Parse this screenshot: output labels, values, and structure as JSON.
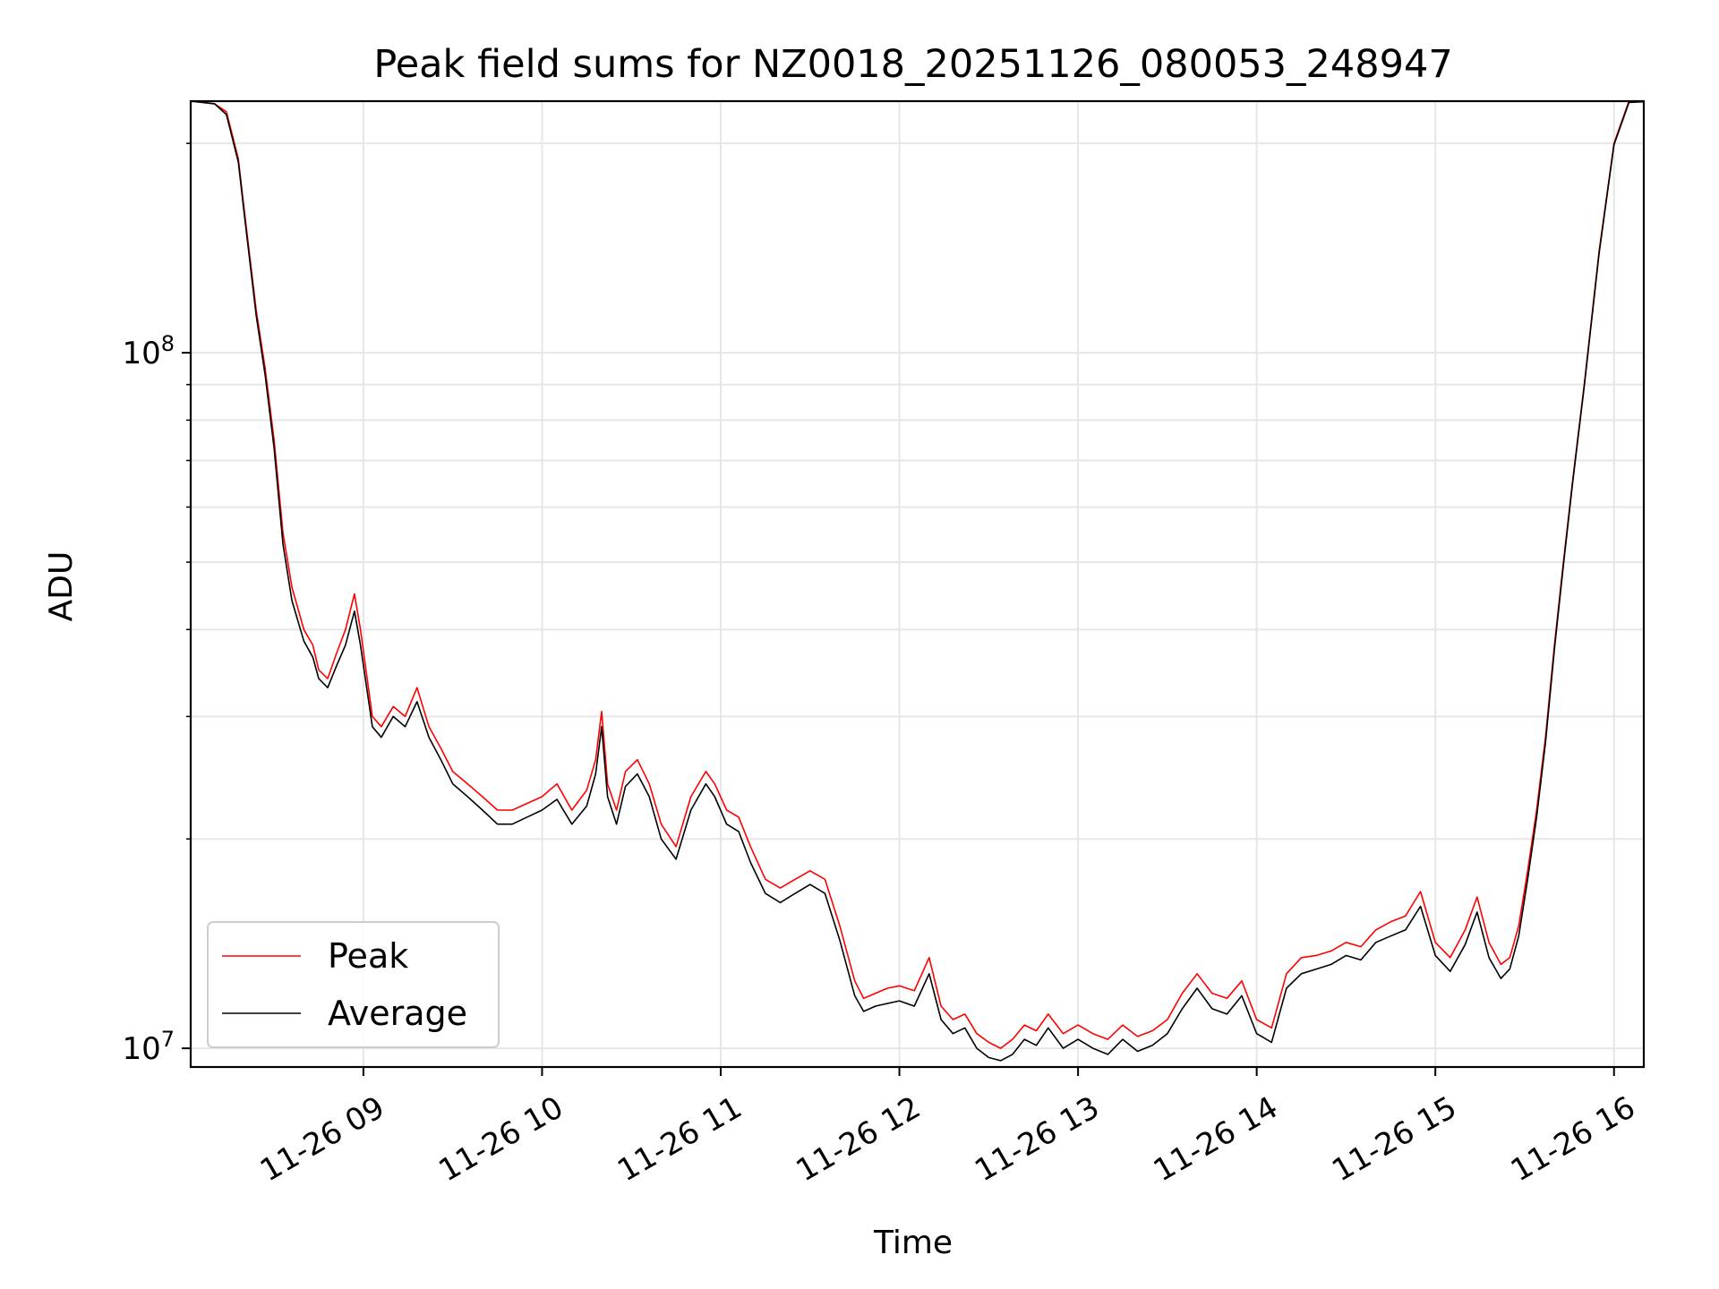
{
  "chart_data": {
    "type": "line",
    "title": "Peak field sums for NZ0018_20251126_080053_248947",
    "xlabel": "Time",
    "ylabel": "ADU",
    "yscale": "log",
    "ylim": [
      9400000,
      230000000
    ],
    "xlim": [
      "2025-11-26 08:02",
      "2025-11-26 16:10"
    ],
    "grid": true,
    "legend": "lower-left",
    "x_ticks": [
      {
        "value": "2025-11-26 09:00",
        "label": "11-26 09"
      },
      {
        "value": "2025-11-26 10:00",
        "label": "11-26 10"
      },
      {
        "value": "2025-11-26 11:00",
        "label": "11-26 11"
      },
      {
        "value": "2025-11-26 12:00",
        "label": "11-26 12"
      },
      {
        "value": "2025-11-26 13:00",
        "label": "11-26 13"
      },
      {
        "value": "2025-11-26 14:00",
        "label": "11-26 14"
      },
      {
        "value": "2025-11-26 15:00",
        "label": "11-26 15"
      },
      {
        "value": "2025-11-26 16:00",
        "label": "11-26 16"
      }
    ],
    "y_ticks": [
      {
        "value": 10000000,
        "base": "10",
        "exp": "7"
      },
      {
        "value": 100000000,
        "base": "10",
        "exp": "8"
      }
    ],
    "x": [
      "2025-11-26 08:02",
      "2025-11-26 08:10",
      "2025-11-26 08:14",
      "2025-11-26 08:18",
      "2025-11-26 08:20",
      "2025-11-26 08:24",
      "2025-11-26 08:27",
      "2025-11-26 08:30",
      "2025-11-26 08:33",
      "2025-11-26 08:36",
      "2025-11-26 08:40",
      "2025-11-26 08:43",
      "2025-11-26 08:45",
      "2025-11-26 08:48",
      "2025-11-26 08:51",
      "2025-11-26 08:54",
      "2025-11-26 08:57",
      "2025-11-26 08:59",
      "2025-11-26 09:03",
      "2025-11-26 09:06",
      "2025-11-26 09:10",
      "2025-11-26 09:14",
      "2025-11-26 09:18",
      "2025-11-26 09:22",
      "2025-11-26 09:26",
      "2025-11-26 09:30",
      "2025-11-26 09:35",
      "2025-11-26 09:40",
      "2025-11-26 09:45",
      "2025-11-26 09:50",
      "2025-11-26 09:55",
      "2025-11-26 10:00",
      "2025-11-26 10:05",
      "2025-11-26 10:10",
      "2025-11-26 10:15",
      "2025-11-26 10:18",
      "2025-11-26 10:20",
      "2025-11-26 10:22",
      "2025-11-26 10:25",
      "2025-11-26 10:28",
      "2025-11-26 10:32",
      "2025-11-26 10:36",
      "2025-11-26 10:40",
      "2025-11-26 10:45",
      "2025-11-26 10:50",
      "2025-11-26 10:55",
      "2025-11-26 10:58",
      "2025-11-26 11:02",
      "2025-11-26 11:06",
      "2025-11-26 11:10",
      "2025-11-26 11:15",
      "2025-11-26 11:20",
      "2025-11-26 11:25",
      "2025-11-26 11:30",
      "2025-11-26 11:35",
      "2025-11-26 11:40",
      "2025-11-26 11:45",
      "2025-11-26 11:48",
      "2025-11-26 11:52",
      "2025-11-26 11:56",
      "2025-11-26 12:00",
      "2025-11-26 12:05",
      "2025-11-26 12:10",
      "2025-11-26 12:14",
      "2025-11-26 12:18",
      "2025-11-26 12:22",
      "2025-11-26 12:26",
      "2025-11-26 12:30",
      "2025-11-26 12:34",
      "2025-11-26 12:38",
      "2025-11-26 12:42",
      "2025-11-26 12:46",
      "2025-11-26 12:50",
      "2025-11-26 12:55",
      "2025-11-26 13:00",
      "2025-11-26 13:05",
      "2025-11-26 13:10",
      "2025-11-26 13:15",
      "2025-11-26 13:20",
      "2025-11-26 13:25",
      "2025-11-26 13:30",
      "2025-11-26 13:35",
      "2025-11-26 13:40",
      "2025-11-26 13:45",
      "2025-11-26 13:50",
      "2025-11-26 13:55",
      "2025-11-26 14:00",
      "2025-11-26 14:05",
      "2025-11-26 14:10",
      "2025-11-26 14:15",
      "2025-11-26 14:20",
      "2025-11-26 14:25",
      "2025-11-26 14:30",
      "2025-11-26 14:35",
      "2025-11-26 14:40",
      "2025-11-26 14:45",
      "2025-11-26 14:50",
      "2025-11-26 14:55",
      "2025-11-26 15:00",
      "2025-11-26 15:05",
      "2025-11-26 15:10",
      "2025-11-26 15:14",
      "2025-11-26 15:18",
      "2025-11-26 15:22",
      "2025-11-26 15:25",
      "2025-11-26 15:28",
      "2025-11-26 15:31",
      "2025-11-26 15:34",
      "2025-11-26 15:37",
      "2025-11-26 15:40",
      "2025-11-26 15:43",
      "2025-11-26 15:46",
      "2025-11-26 15:50",
      "2025-11-26 15:55",
      "2025-11-26 16:00",
      "2025-11-26 16:05",
      "2025-11-26 16:10"
    ],
    "series": [
      {
        "name": "Peak",
        "color": "#ff0000",
        "values": [
          230000000,
          228000000,
          222000000,
          190000000,
          160000000,
          115000000,
          95000000,
          75000000,
          55000000,
          46000000,
          40000000,
          38000000,
          35000000,
          34000000,
          37000000,
          40000000,
          45000000,
          40000000,
          30000000,
          29000000,
          31000000,
          30000000,
          33000000,
          29000000,
          27000000,
          25000000,
          24000000,
          23000000,
          22000000,
          22000000,
          22500000,
          23000000,
          24000000,
          22000000,
          23500000,
          26000000,
          30500000,
          24000000,
          22000000,
          25000000,
          26000000,
          24000000,
          21000000,
          19500000,
          23000000,
          25000000,
          24000000,
          22000000,
          21500000,
          19500000,
          17500000,
          17000000,
          17500000,
          18000000,
          17500000,
          15000000,
          12500000,
          11800000,
          12000000,
          12200000,
          12300000,
          12100000,
          13500000,
          11500000,
          11000000,
          11200000,
          10500000,
          10200000,
          10000000,
          10300000,
          10800000,
          10600000,
          11200000,
          10500000,
          10800000,
          10500000,
          10300000,
          10800000,
          10400000,
          10600000,
          11000000,
          12000000,
          12800000,
          12000000,
          11800000,
          12500000,
          11000000,
          10700000,
          12800000,
          13500000,
          13600000,
          13800000,
          14200000,
          14000000,
          14800000,
          15200000,
          15500000,
          16800000,
          14200000,
          13500000,
          14800000,
          16500000,
          14200000,
          13200000,
          13500000,
          15000000,
          18000000,
          22000000,
          28000000,
          38000000,
          50000000,
          65000000,
          90000000,
          140000000,
          200000000,
          230000000,
          230000000
        ]
      },
      {
        "name": "Average",
        "color": "#000000",
        "values": [
          230000000,
          228000000,
          220000000,
          188000000,
          158000000,
          113000000,
          93000000,
          73000000,
          53000000,
          44000000,
          38500000,
          36500000,
          34000000,
          33000000,
          35500000,
          38000000,
          42500000,
          38000000,
          29000000,
          28000000,
          30000000,
          29000000,
          31500000,
          28000000,
          26000000,
          24000000,
          23000000,
          22000000,
          21000000,
          21000000,
          21500000,
          22000000,
          22800000,
          21000000,
          22300000,
          24800000,
          29000000,
          23000000,
          21000000,
          23800000,
          24800000,
          23000000,
          20000000,
          18700000,
          22000000,
          24000000,
          23000000,
          21000000,
          20500000,
          18500000,
          16700000,
          16200000,
          16700000,
          17200000,
          16700000,
          14300000,
          11900000,
          11300000,
          11500000,
          11600000,
          11700000,
          11500000,
          12800000,
          11000000,
          10500000,
          10700000,
          10000000,
          9700000,
          9600000,
          9800000,
          10300000,
          10100000,
          10700000,
          10000000,
          10300000,
          10000000,
          9800000,
          10300000,
          9900000,
          10100000,
          10500000,
          11400000,
          12200000,
          11400000,
          11200000,
          11900000,
          10500000,
          10200000,
          12200000,
          12800000,
          13000000,
          13200000,
          13600000,
          13400000,
          14200000,
          14500000,
          14800000,
          16000000,
          13600000,
          12900000,
          14100000,
          15700000,
          13500000,
          12600000,
          13000000,
          14500000,
          17500000,
          21500000,
          27500000,
          37500000,
          49500000,
          64500000,
          89500000,
          139000000,
          199000000,
          229000000,
          229500000
        ]
      }
    ]
  }
}
